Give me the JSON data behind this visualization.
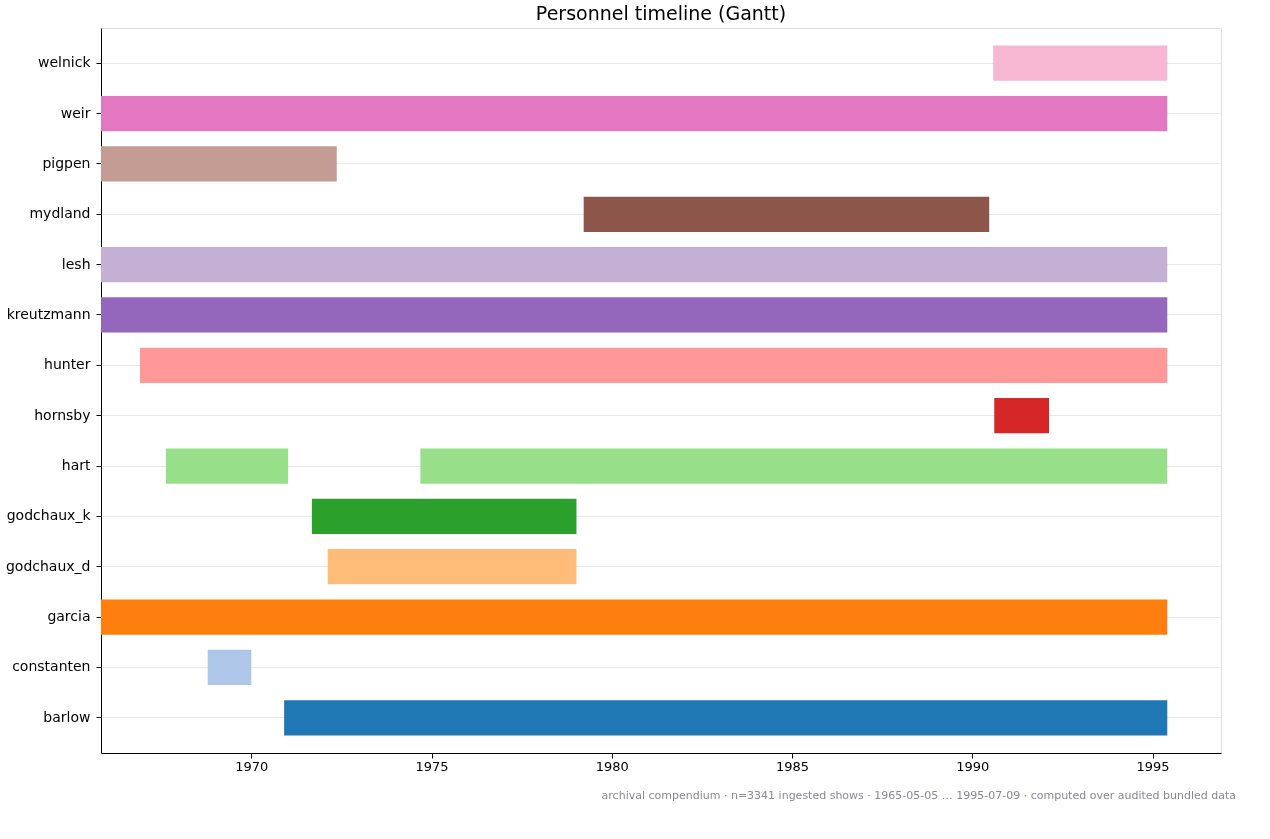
{
  "chart_data": {
    "type": "bar",
    "orientation": "horizontal",
    "title": "Personnel timeline (Gantt)",
    "categories": [
      "welnick",
      "weir",
      "pigpen",
      "mydland",
      "lesh",
      "kreutzmann",
      "hunter",
      "hornsby",
      "hart",
      "godchaux_k",
      "godchaux_d",
      "garcia",
      "constanten",
      "barlow"
    ],
    "series": [
      {
        "base": [
          1990.58,
          1965.83,
          1965.83,
          1979.22,
          1965.83,
          1965.83,
          1966.91,
          1990.61,
          1967.63,
          1971.68,
          1972.12,
          1965.83,
          1968.79,
          1970.91
        ],
        "values": [
          4.83,
          29.58,
          6.54,
          11.25,
          29.58,
          29.58,
          28.5,
          1.52,
          3.39,
          7.34,
          6.9,
          29.58,
          1.21,
          24.5
        ],
        "colors": [
          "#f7b6d2",
          "#e377c2",
          "#c49c94",
          "#8c564b",
          "#c5b0d5",
          "#9467bd",
          "#ff9896",
          "#d62728",
          "#98df8a",
          "#2ca02c",
          "#ffbb78",
          "#ff7f0e",
          "#aec7e8",
          "#1f77b4"
        ]
      },
      {
        "base": [
          null,
          null,
          null,
          null,
          null,
          null,
          null,
          null,
          1974.69,
          null,
          null,
          null,
          null,
          null
        ],
        "values": [
          null,
          null,
          null,
          null,
          null,
          null,
          null,
          null,
          20.72,
          null,
          null,
          null,
          null,
          null
        ],
        "colors": [
          null,
          null,
          null,
          null,
          null,
          null,
          null,
          null,
          "#98df8a",
          null,
          null,
          null,
          null,
          null
        ]
      }
    ],
    "xlim": [
      1965.83,
      1996.9
    ],
    "xticks": [
      1970,
      1975,
      1980,
      1985,
      1990,
      1995
    ],
    "grid": "y",
    "annotations": [
      "archival compendium · n=3341 ingested shows · 1965-05-05 … 1995-07-09 · computed over audited bundled data"
    ]
  }
}
